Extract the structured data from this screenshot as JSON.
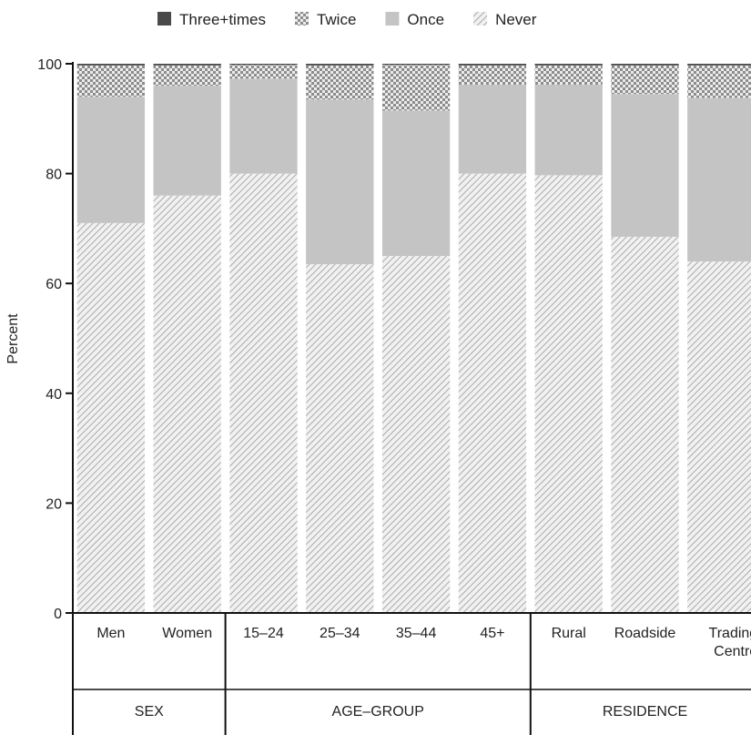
{
  "chart_data": {
    "type": "bar",
    "stacked": true,
    "ylabel": "Percent",
    "ylim": [
      0,
      100
    ],
    "yticks": [
      0,
      20,
      40,
      60,
      80,
      100
    ],
    "grid": false,
    "legend_position": "top",
    "categories": [
      "Men",
      "Women",
      "15–24",
      "25–34",
      "35–44",
      "45+",
      "Rural",
      "Roadside",
      "Trading Centre"
    ],
    "category_label_lines": [
      [
        "Men"
      ],
      [
        "Women"
      ],
      [
        "15–24"
      ],
      [
        "25–34"
      ],
      [
        "35–44"
      ],
      [
        "45+"
      ],
      [
        "Rural"
      ],
      [
        "Roadside"
      ],
      [
        "Trading",
        "Centre"
      ]
    ],
    "groups": [
      {
        "label": "SEX",
        "categories": [
          "Men",
          "Women"
        ]
      },
      {
        "label": "AGE–GROUP",
        "categories": [
          "15–24",
          "25–34",
          "35–44",
          "45+"
        ]
      },
      {
        "label": "RESIDENCE",
        "categories": [
          "Rural",
          "Roadside",
          "Trading Centre"
        ]
      }
    ],
    "series": [
      {
        "name": "Never",
        "pattern": "hatch",
        "color": "#c8c8c8",
        "values": [
          71,
          76,
          80,
          63.5,
          65,
          80,
          79.7,
          68.5,
          64
        ]
      },
      {
        "name": "Once",
        "pattern": "solid",
        "color": "#c4c4c4",
        "values": [
          23,
          20,
          17.3,
          30,
          26.5,
          16.2,
          16.5,
          26,
          29.8
        ]
      },
      {
        "name": "Twice",
        "pattern": "checker",
        "color": "#9a9a9a",
        "values": [
          5.7,
          3.7,
          2.5,
          6.2,
          8.3,
          3.5,
          3.5,
          5.2,
          5.9
        ]
      },
      {
        "name": "Three+times",
        "pattern": "solid",
        "color": "#4a4a4a",
        "values": [
          0.3,
          0.3,
          0.2,
          0.3,
          0.2,
          0.3,
          0.3,
          0.3,
          0.3
        ]
      }
    ],
    "legend_order": [
      "Three+times",
      "Twice",
      "Once",
      "Never"
    ]
  }
}
